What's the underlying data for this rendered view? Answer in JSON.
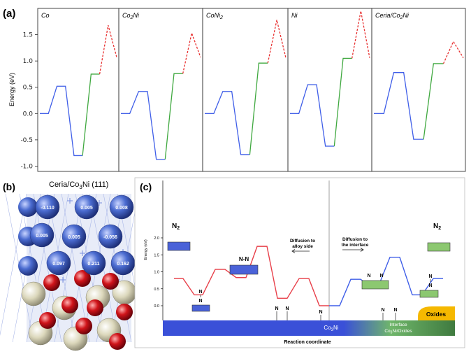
{
  "figure": {
    "panel_labels": {
      "a": "(a)",
      "b": "(b)",
      "c": "(c)"
    },
    "panel_b": {
      "title": "Ceria/Co",
      "title_sub": "3",
      "title_tail": "Ni (111)",
      "charges": [
        "-0.110",
        "0.005",
        "0.008",
        "0.005",
        "0.005",
        "-0.056",
        "0.097",
        "0.211",
        "0.162"
      ],
      "colors": {
        "co_ni_atom": "#4a6bd0",
        "oxygen": "#d0141a",
        "cerium": "#d8d4b8"
      }
    },
    "panel_c": {
      "ylabel": "Energy (eV)",
      "xlabel": "Reaction coordinate",
      "yticks": [
        "0.0",
        "0.5",
        "1.0",
        "1.5",
        "2.0"
      ],
      "species": {
        "n2_left": "N",
        "n2_left_sub": "2",
        "n2_right": "N",
        "n2_right_sub": "2",
        "nn_bridge": "N-N",
        "n_atom": "N"
      },
      "notes": {
        "diffusion_alloy_l1": "Diffusion to",
        "diffusion_alloy_l2": "alloy side",
        "diffusion_interface_l1": "Diffusion to",
        "diffusion_interface_l2": "the interface"
      },
      "substrate": {
        "alloy_l1": "Co",
        "alloy_sub": "3",
        "alloy_l2": "Ni",
        "interface_l1": "Interface",
        "interface_l2a": "Co",
        "interface_sub": "3",
        "interface_l2b": "Ni/Oxides",
        "oxides": "Oxides"
      },
      "colors": {
        "red_path": "#e8404a",
        "blue_path": "#3f5ee8",
        "alloy": "#3a50d8",
        "interface": "#7cc45a",
        "oxides": "#f5b800"
      }
    }
  },
  "chart_data": {
    "type": "line",
    "ylabel": "Energy (eV)",
    "ylim": [
      -1.1,
      2.0
    ],
    "yticks": [
      -1.0,
      -0.5,
      0.0,
      0.5,
      1.0,
      1.5
    ],
    "step_x": [
      0,
      1,
      2,
      3,
      4,
      5,
      6,
      7,
      8,
      9
    ],
    "segments": {
      "solid_blue": [
        0,
        5
      ],
      "green": [
        5,
        7
      ],
      "dashed_red": [
        7,
        9
      ]
    },
    "colors": {
      "solid_blue": "#3f5ee8",
      "green": "#3fa83f",
      "dashed_red": "#e83030"
    },
    "series": [
      {
        "name": "Co",
        "values": [
          0.0,
          0.0,
          0.52,
          0.52,
          -0.8,
          -0.8,
          0.75,
          0.75,
          1.68,
          1.07
        ]
      },
      {
        "name": "Co2Ni",
        "values": [
          0.0,
          0.0,
          0.42,
          0.42,
          -0.87,
          -0.87,
          0.76,
          0.76,
          1.53,
          1.07
        ]
      },
      {
        "name": "CoNi2",
        "values": [
          0.0,
          0.0,
          0.42,
          0.42,
          -0.78,
          -0.78,
          0.96,
          0.96,
          1.78,
          1.06
        ]
      },
      {
        "name": "Ni",
        "values": [
          0.0,
          0.0,
          0.55,
          0.55,
          -0.62,
          -0.62,
          1.05,
          1.05,
          1.95,
          1.06
        ]
      },
      {
        "name": "Ceria/Co2Ni",
        "values": [
          0.0,
          0.0,
          0.78,
          0.78,
          -0.49,
          -0.49,
          0.95,
          0.95,
          1.37,
          1.06
        ]
      }
    ],
    "panel_titles": [
      {
        "main": "Co",
        "sub": "",
        "tail": ""
      },
      {
        "main": "Co",
        "sub": "2",
        "tail": "Ni"
      },
      {
        "main": "CoNi",
        "sub": "2",
        "tail": ""
      },
      {
        "main": "Ni",
        "sub": "",
        "tail": ""
      },
      {
        "main": "Ceria/Co",
        "sub": "2",
        "tail": "Ni"
      }
    ]
  }
}
